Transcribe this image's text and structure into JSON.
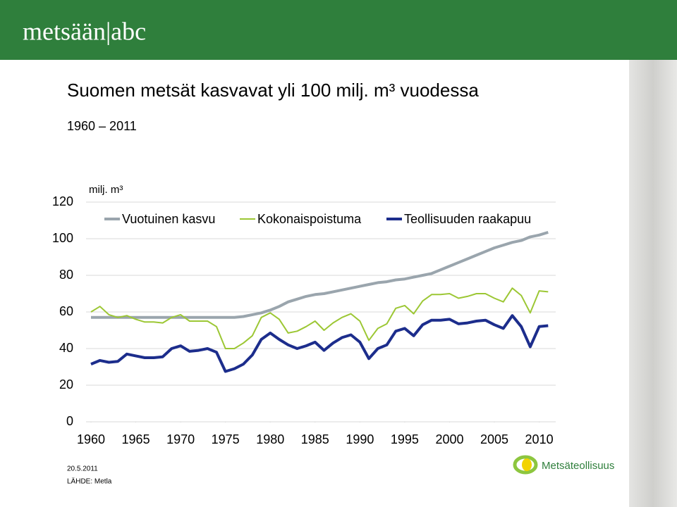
{
  "logo": "metsään|abc",
  "date": "20.5.2011",
  "source": "LÄHDE: Metla",
  "brand": "Metsäteollisuus",
  "chart_data": {
    "type": "line",
    "title": "Suomen metsät kasvavat yli 100 milj. m³ vuodessa",
    "subtitle": "1960 – 2011",
    "y_label": "milj. m³",
    "x": [
      1960,
      1961,
      1962,
      1963,
      1964,
      1965,
      1966,
      1967,
      1968,
      1969,
      1970,
      1971,
      1972,
      1973,
      1974,
      1975,
      1976,
      1977,
      1978,
      1979,
      1980,
      1981,
      1982,
      1983,
      1984,
      1985,
      1986,
      1987,
      1988,
      1989,
      1990,
      1991,
      1992,
      1993,
      1994,
      1995,
      1996,
      1997,
      1998,
      1999,
      2000,
      2001,
      2002,
      2003,
      2004,
      2005,
      2006,
      2007,
      2008,
      2009,
      2010,
      2011
    ],
    "series": [
      {
        "name": "Vuotuinen kasvu",
        "color": "#9aa5ad",
        "width": 4,
        "values": [
          57,
          57,
          57,
          57,
          57,
          57,
          57,
          57,
          57,
          57,
          57,
          57,
          57,
          57,
          57,
          57,
          57,
          57.5,
          58.5,
          59.5,
          61,
          63,
          65.5,
          67,
          68.5,
          69.5,
          70,
          71,
          72,
          73,
          74,
          75,
          76,
          76.5,
          77.5,
          78,
          79,
          80,
          81,
          83,
          85,
          87,
          89,
          91,
          93,
          95,
          96.5,
          98,
          99,
          101,
          102,
          103.5
        ]
      },
      {
        "name": "Kokonaispoistuma",
        "color": "#9cc734",
        "width": 2,
        "values": [
          60,
          63,
          58.5,
          57,
          58,
          56,
          54.5,
          54.5,
          54,
          57,
          58.5,
          55,
          55,
          55,
          52,
          40,
          40,
          43,
          47,
          57,
          59.5,
          56,
          48.5,
          49.5,
          52,
          55,
          50,
          54,
          57,
          59,
          55,
          44.5,
          51,
          53.5,
          62,
          63.5,
          59,
          66,
          69.5,
          69.5,
          70,
          67.5,
          68.5,
          70,
          70,
          67.5,
          65.5,
          73,
          69,
          59.5,
          71.5,
          71
        ]
      },
      {
        "name": "Teollisuuden raakapuu",
        "color": "#1c2d8c",
        "width": 4,
        "values": [
          31.5,
          33.5,
          32.5,
          33,
          37,
          36,
          35,
          35,
          35.5,
          40,
          41.5,
          38.5,
          39,
          40,
          38,
          27.5,
          29,
          31.5,
          36.5,
          45,
          48.5,
          45,
          42,
          40,
          41.5,
          43.5,
          39,
          43,
          46,
          47.5,
          43.5,
          34.5,
          40,
          42,
          49.5,
          51,
          47,
          53,
          55.5,
          55.5,
          56,
          53.5,
          54,
          55,
          55.5,
          53,
          51,
          58,
          52,
          41,
          52,
          52.5
        ]
      }
    ],
    "xlim": [
      1960,
      2012
    ],
    "xticks": [
      1960,
      1965,
      1970,
      1975,
      1980,
      1985,
      1990,
      1995,
      2000,
      2005,
      2010
    ],
    "ylim": [
      0,
      120
    ],
    "yticks": [
      0,
      20,
      40,
      60,
      80,
      100,
      120
    ],
    "grid": true,
    "legend": "top"
  }
}
